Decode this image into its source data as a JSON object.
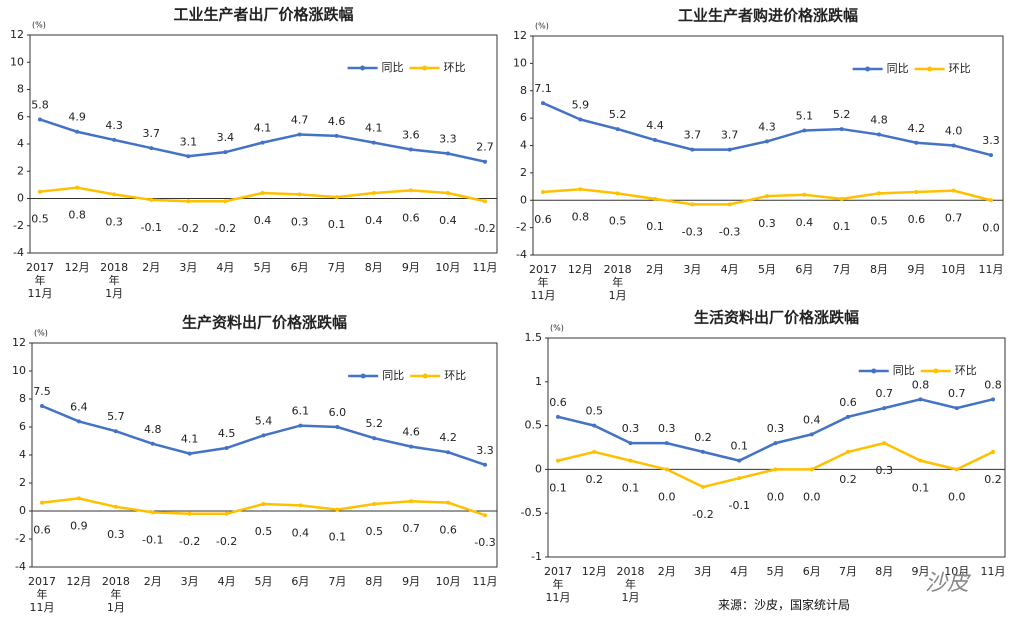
{
  "chart_data": [
    {
      "type": "line",
      "title": "工业生产者出厂价格涨跌幅",
      "y_label": "(%)",
      "legend": "upper right",
      "categories": [
        "2017\n年\n11月",
        "12月",
        "2018\n年\n1月",
        "2月",
        "3月",
        "4月",
        "5月",
        "6月",
        "7月",
        "8月",
        "9月",
        "10月",
        "11月"
      ],
      "series": [
        {
          "name": "同比",
          "color": "#4472c4",
          "values": [
            5.8,
            4.9,
            4.3,
            3.7,
            3.1,
            3.4,
            4.1,
            4.7,
            4.6,
            4.1,
            3.6,
            3.3,
            2.7
          ]
        },
        {
          "name": "环比",
          "color": "#ffc000",
          "values": [
            0.5,
            0.8,
            0.3,
            -0.1,
            -0.2,
            -0.2,
            0.4,
            0.3,
            0.1,
            0.4,
            0.6,
            0.4,
            -0.2
          ]
        }
      ],
      "ylim": [
        -4,
        12
      ],
      "yticks": [
        -4,
        -2,
        0,
        2,
        4,
        6,
        8,
        10,
        12
      ]
    },
    {
      "type": "line",
      "title": "工业生产者购进价格涨跌幅",
      "y_label": "(%)",
      "legend": "upper right",
      "categories": [
        "2017\n年\n11月",
        "12月",
        "2018\n年\n1月",
        "2月",
        "3月",
        "4月",
        "5月",
        "6月",
        "7月",
        "8月",
        "9月",
        "10月",
        "11月"
      ],
      "series": [
        {
          "name": "同比",
          "color": "#4472c4",
          "values": [
            7.1,
            5.9,
            5.2,
            4.4,
            3.7,
            3.7,
            4.3,
            5.1,
            5.2,
            4.8,
            4.2,
            4.0,
            3.3
          ],
          "value_labels": [
            "7.1",
            "5.9",
            "5.2",
            "4.4",
            "3.7",
            "3.7",
            "4.3",
            "5.1",
            "5.2",
            "4.8",
            "4.2",
            "4.0",
            "3.3"
          ]
        },
        {
          "name": "环比",
          "color": "#ffc000",
          "values": [
            0.6,
            0.8,
            0.5,
            0.1,
            -0.3,
            -0.3,
            0.3,
            0.4,
            0.1,
            0.5,
            0.6,
            0.7,
            0.0
          ],
          "value_labels": [
            "0.6",
            "0.8",
            "0.5",
            "0.1",
            "-0.3",
            "-0.3",
            "0.3",
            "0.4",
            "0.1",
            "0.5",
            "0.6",
            "0.7",
            "0.0"
          ]
        }
      ],
      "ylim": [
        -4,
        12
      ],
      "yticks": [
        -4,
        -2,
        0,
        2,
        4,
        6,
        8,
        10,
        12
      ]
    },
    {
      "type": "line",
      "title": "生产资料出厂价格涨跌幅",
      "y_label": "(%)",
      "legend": "upper right",
      "categories": [
        "2017\n年\n11月",
        "12月",
        "2018\n年\n1月",
        "2月",
        "3月",
        "4月",
        "5月",
        "6月",
        "7月",
        "8月",
        "9月",
        "10月",
        "11月"
      ],
      "series": [
        {
          "name": "同比",
          "color": "#4472c4",
          "values": [
            7.5,
            6.4,
            5.7,
            4.8,
            4.1,
            4.5,
            5.4,
            6.1,
            6.0,
            5.2,
            4.6,
            4.2,
            3.3
          ],
          "value_labels": [
            "7.5",
            "6.4",
            "5.7",
            "4.8",
            "4.1",
            "4.5",
            "5.4",
            "6.1",
            "6.0",
            "5.2",
            "4.6",
            "4.2",
            "3.3"
          ]
        },
        {
          "name": "环比",
          "color": "#ffc000",
          "values": [
            0.6,
            0.9,
            0.3,
            -0.1,
            -0.2,
            -0.2,
            0.5,
            0.4,
            0.1,
            0.5,
            0.7,
            0.6,
            -0.3
          ]
        }
      ],
      "ylim": [
        -4,
        12
      ],
      "yticks": [
        -4,
        -2,
        0,
        2,
        4,
        6,
        8,
        10,
        12
      ]
    },
    {
      "type": "line",
      "title": "生活资料出厂价格涨跌幅",
      "y_label": "(%)",
      "legend": "upper right",
      "categories": [
        "2017\n年\n11月",
        "12月",
        "2018\n年\n1月",
        "2月",
        "3月",
        "4月",
        "5月",
        "6月",
        "7月",
        "8月",
        "9月",
        "10月",
        "11月"
      ],
      "series": [
        {
          "name": "同比",
          "color": "#4472c4",
          "values": [
            0.6,
            0.5,
            0.3,
            0.3,
            0.2,
            0.1,
            0.3,
            0.4,
            0.6,
            0.7,
            0.8,
            0.7,
            0.8
          ]
        },
        {
          "name": "环比",
          "color": "#ffc000",
          "values": [
            0.1,
            0.2,
            0.1,
            0.0,
            -0.2,
            -0.1,
            0.0,
            0.0,
            0.2,
            0.3,
            0.1,
            0.0,
            0.2
          ],
          "value_labels": [
            "0.1",
            "0.2",
            "0.1",
            "0.0",
            "-0.2",
            "-0.1",
            "0.0",
            "0.0",
            "0.2",
            "0.3",
            "0.1",
            "0.0",
            "0.2"
          ]
        }
      ],
      "ylim": [
        -1,
        1.5
      ],
      "yticks": [
        -1,
        -0.5,
        0,
        0.5,
        1,
        1.5
      ],
      "note": "来源：沙皮，国家统计局",
      "watermark": "沙皮"
    }
  ]
}
